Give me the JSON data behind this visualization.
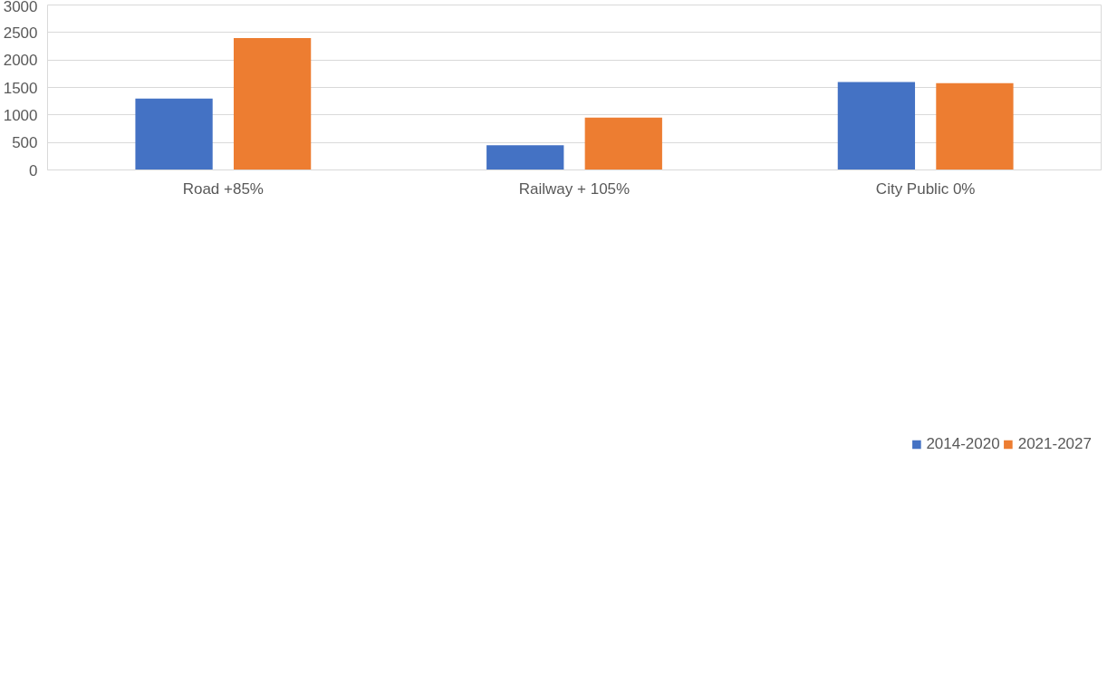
{
  "chart_data": {
    "type": "bar",
    "categories": [
      "Road +85%",
      "Railway + 105%",
      "City Public 0%"
    ],
    "series": [
      {
        "name": "2014-2020",
        "color": "#4472c4",
        "values": [
          1300,
          450,
          1600
        ]
      },
      {
        "name": "2021-2027",
        "color": "#ed7d31",
        "values": [
          2400,
          950,
          1580
        ]
      }
    ],
    "ylim": [
      0,
      3000
    ],
    "yticks": [
      0,
      500,
      1000,
      1500,
      2000,
      2500,
      3000
    ],
    "grid": "y",
    "legend": "bottom"
  }
}
